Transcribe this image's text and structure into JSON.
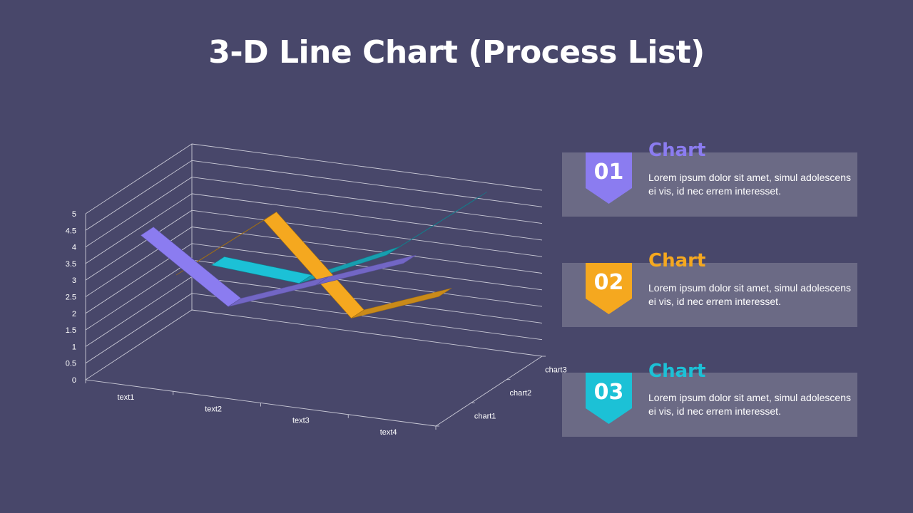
{
  "title": "3-D Line Chart (Process List)",
  "colors": {
    "background": "#48476a",
    "card": "#6b6a85",
    "purple": "#8b7cf0",
    "orange": "#f5a81f",
    "cyan": "#1cc1d6"
  },
  "chart_data": {
    "type": "line",
    "3d": true,
    "categories": [
      "text1",
      "text2",
      "text3",
      "text4"
    ],
    "depth_categories": [
      "chart1",
      "chart2",
      "chart3"
    ],
    "ylim": [
      0,
      5
    ],
    "yticks": [
      "0",
      "0.5",
      "1",
      "1.5",
      "2",
      "2.5",
      "3",
      "3.5",
      "4",
      "4.5",
      "5"
    ],
    "grid": true,
    "series": [
      {
        "name": "chart1",
        "color": "#8b7cf0",
        "values": [
          4.3,
          2.5,
          3.5,
          4.5
        ]
      },
      {
        "name": "chart2",
        "color": "#f5a81f",
        "values": [
          2.4,
          4.4,
          1.8,
          2.8
        ]
      },
      {
        "name": "chart3",
        "color": "#1cc1d6",
        "values": [
          2.0,
          1.8,
          3.0,
          5.0
        ]
      }
    ]
  },
  "cards": [
    {
      "number": "01",
      "heading": "Chart",
      "color": "#8b7cf0",
      "text": "Lorem ipsum dolor sit amet, simul adolescens ei vis, id nec errem interesset."
    },
    {
      "number": "02",
      "heading": "Chart",
      "color": "#f5a81f",
      "text": "Lorem ipsum dolor sit amet, simul adolescens ei vis, id nec errem interesset."
    },
    {
      "number": "03",
      "heading": "Chart",
      "color": "#1cc1d6",
      "text": "Lorem ipsum dolor sit amet, simul adolescens ei vis, id nec errem interesset."
    }
  ]
}
